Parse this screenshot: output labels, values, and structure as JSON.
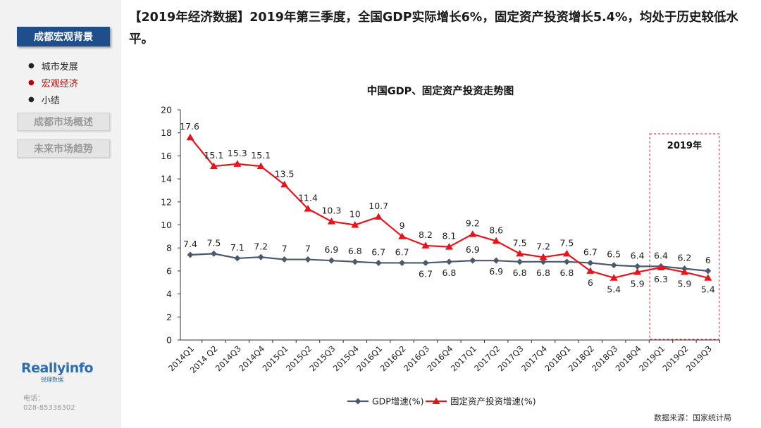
{
  "sidebar": {
    "active_section": "成都宏观背景",
    "sub_items": [
      "城市发展",
      "宏观经济",
      "小结"
    ],
    "active_sub_index": 1,
    "sections": [
      "成都市场概述",
      "未来市场趋势"
    ],
    "logo": "Reallyinfo",
    "logo_sub": "锐理数据",
    "contact_label": "电话：",
    "contact_phone": "028-85336302"
  },
  "headline": "【2019年经济数据】2019年第三季度，全国GDP实际增长6%，固定资产投资增长5.4%，均处于历史较低水平。",
  "source": "数据来源：国家统计局",
  "chart_data": {
    "type": "line",
    "title": "中国GDP、固定资产投资走势图",
    "categories": [
      "2014Q1",
      "2014 Q2",
      "2014Q3",
      "2014Q4",
      "2015Q1",
      "2015Q2",
      "2015Q3",
      "2015Q4",
      "2016Q1",
      "2016Q2",
      "2016Q3",
      "2016Q4",
      "2017Q1",
      "2017Q2",
      "2017Q3",
      "2017Q4",
      "2018Q1",
      "2018Q2",
      "2018Q3",
      "2018Q4",
      "2019Q1",
      "2019Q2",
      "2019Q3"
    ],
    "series": [
      {
        "name": "GDP增速(%)",
        "color": "#4a5a6e",
        "marker": "diamond",
        "values": [
          7.4,
          7.5,
          7.1,
          7.2,
          7,
          7,
          6.9,
          6.8,
          6.7,
          6.7,
          6.7,
          6.8,
          6.9,
          6.9,
          6.8,
          6.8,
          6.8,
          6.7,
          6.5,
          6.4,
          6.4,
          6.2,
          6
        ]
      },
      {
        "name": "固定资产投资增速(%)",
        "color": "#e8141c",
        "marker": "triangle",
        "values": [
          17.6,
          15.1,
          15.3,
          15.1,
          13.5,
          11.4,
          10.3,
          10,
          10.7,
          9,
          8.2,
          8.1,
          9.2,
          8.6,
          7.5,
          7.2,
          7.5,
          6,
          5.4,
          5.9,
          6.3,
          5.9,
          5.4
        ]
      }
    ],
    "ylim": [
      0,
      20
    ],
    "yticks": [
      0,
      2,
      4,
      6,
      8,
      10,
      12,
      14,
      16,
      18,
      20
    ],
    "highlight": {
      "label": "2019年",
      "from_index": 20,
      "to_index": 22
    },
    "legend_position": "bottom",
    "grid": false
  }
}
